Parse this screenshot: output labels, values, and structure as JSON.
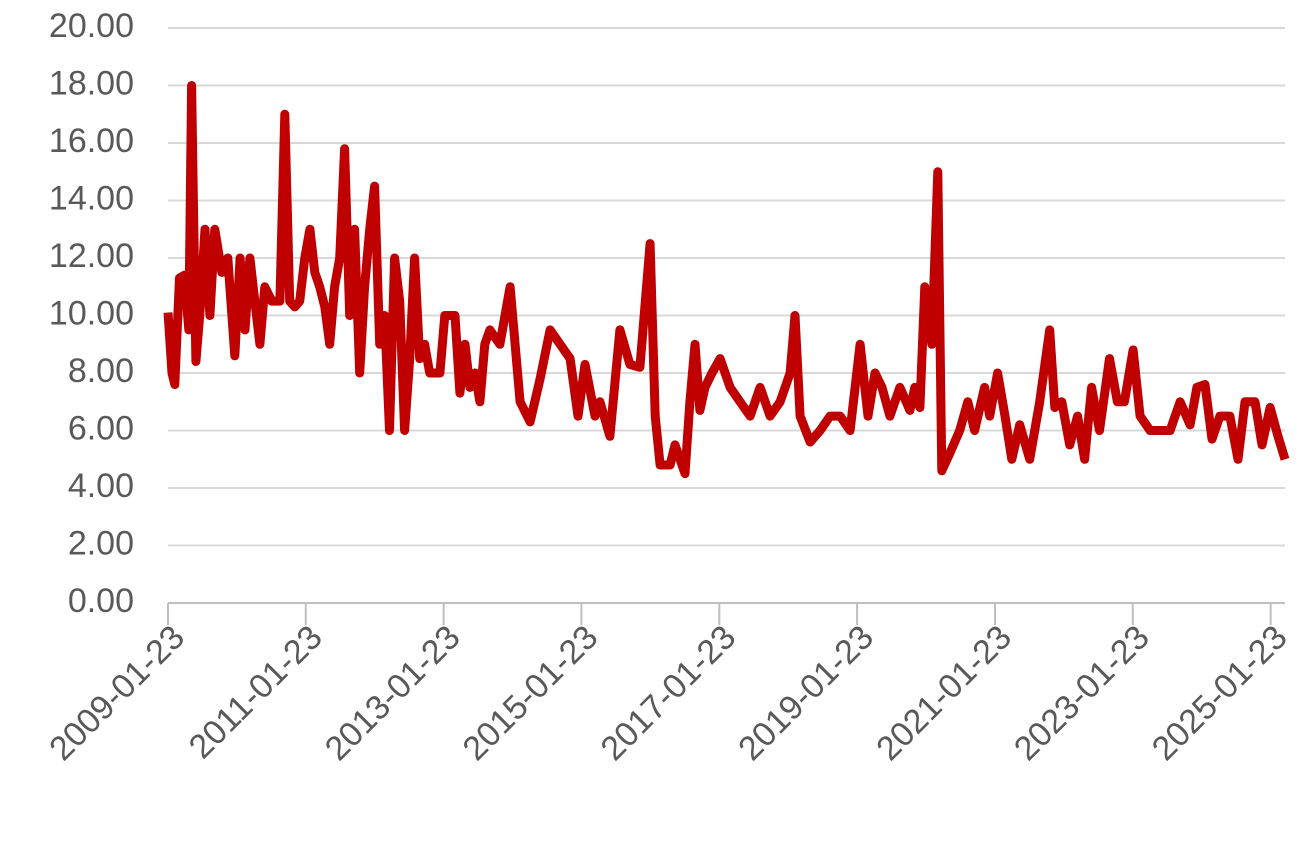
{
  "chart_data": {
    "type": "line",
    "x": [
      "2009-01-23",
      "2009-02-13",
      "2009-02-28",
      "2009-03-25",
      "2009-04-20",
      "2009-05-13",
      "2009-05-28",
      "2009-06-20",
      "2009-07-10",
      "2009-08-07",
      "2009-09-02",
      "2009-09-28",
      "2009-11-04",
      "2009-12-06",
      "2010-01-12",
      "2010-02-09",
      "2010-03-07",
      "2010-04-02",
      "2010-04-28",
      "2010-05-25",
      "2010-06-20",
      "2010-07-27",
      "2010-09-08",
      "2010-10-04",
      "2010-10-30",
      "2010-11-26",
      "2010-12-22",
      "2011-01-18",
      "2011-02-14",
      "2011-03-12",
      "2011-04-07",
      "2011-05-04",
      "2011-05-30",
      "2011-06-25",
      "2011-07-22",
      "2011-08-17",
      "2011-09-13",
      "2011-10-09",
      "2011-11-05",
      "2011-12-01",
      "2011-12-28",
      "2012-01-23",
      "2012-02-19",
      "2012-03-16",
      "2012-04-11",
      "2012-05-08",
      "2012-06-04",
      "2012-06-30",
      "2012-07-27",
      "2012-08-22",
      "2012-09-18",
      "2012-10-14",
      "2012-11-10",
      "2013-01-03",
      "2013-01-29",
      "2013-03-24",
      "2013-04-19",
      "2013-05-16",
      "2013-06-11",
      "2013-07-08",
      "2013-08-03",
      "2013-08-29",
      "2013-09-25",
      "2013-11-17",
      "2014-01-10",
      "2014-03-04",
      "2014-04-26",
      "2014-06-18",
      "2014-08-10",
      "2014-10-02",
      "2014-11-24",
      "2015-01-05",
      "2015-02-11",
      "2015-04-05",
      "2015-05-01",
      "2015-06-23",
      "2015-08-15",
      "2015-10-07",
      "2015-11-29",
      "2016-01-22",
      "2016-02-18",
      "2016-03-15",
      "2016-05-07",
      "2016-06-02",
      "2016-07-25",
      "2016-08-20",
      "2016-09-16",
      "2016-10-12",
      "2016-11-08",
      "2016-12-15",
      "2017-01-27",
      "2017-03-21",
      "2017-05-13",
      "2017-07-05",
      "2017-08-27",
      "2017-10-19",
      "2017-12-11",
      "2018-02-02",
      "2018-02-28",
      "2018-03-27",
      "2018-05-19",
      "2018-07-11",
      "2018-09-02",
      "2018-10-25",
      "2018-12-17",
      "2019-02-08",
      "2019-03-22",
      "2019-04-28",
      "2019-06-04",
      "2019-07-16",
      "2019-09-07",
      "2019-10-30",
      "2019-11-25",
      "2019-12-22",
      "2020-01-17",
      "2020-02-23",
      "2020-03-26",
      "2020-04-16",
      "2020-05-28",
      "2020-07-20",
      "2020-09-01",
      "2020-10-07",
      "2020-11-29",
      "2020-12-26",
      "2021-02-06",
      "2021-03-17",
      "2021-04-22",
      "2021-06-03",
      "2021-07-26",
      "2021-09-17",
      "2021-11-09",
      "2021-12-06",
      "2022-01-12",
      "2022-02-23",
      "2022-04-06",
      "2022-05-13",
      "2022-06-19",
      "2022-07-31",
      "2022-09-22",
      "2022-11-03",
      "2022-12-10",
      "2023-01-25",
      "2023-03-03",
      "2023-04-25",
      "2023-06-17",
      "2023-08-09",
      "2023-10-01",
      "2023-11-23",
      "2023-12-29",
      "2024-02-10",
      "2024-03-18",
      "2024-04-29",
      "2024-06-21",
      "2024-08-03",
      "2024-09-09",
      "2024-11-01",
      "2024-12-08",
      "2025-01-20",
      "2025-03-03",
      "2025-04-09"
    ],
    "series": [
      {
        "color": "#c00000",
        "values": [
          10.1,
          8.0,
          7.6,
          11.3,
          11.4,
          9.5,
          18.0,
          8.4,
          10.0,
          13.0,
          10.0,
          13.0,
          11.5,
          12.0,
          8.6,
          12.0,
          9.5,
          12.0,
          10.5,
          9.0,
          11.0,
          10.5,
          10.5,
          17.0,
          10.5,
          10.3,
          10.5,
          12.0,
          13.0,
          11.5,
          11.0,
          10.3,
          9.0,
          11.0,
          12.0,
          15.8,
          10.0,
          13.0,
          8.0,
          11.0,
          13.0,
          14.5,
          9.0,
          10.0,
          6.0,
          12.0,
          10.5,
          6.0,
          8.5,
          12.0,
          8.5,
          9.0,
          8.0,
          8.0,
          10.0,
          10.0,
          7.3,
          9.0,
          7.5,
          8.0,
          7.0,
          9.0,
          9.5,
          9.0,
          11.0,
          7.0,
          6.3,
          7.8,
          9.5,
          9.0,
          8.5,
          6.5,
          8.3,
          6.5,
          7.0,
          5.8,
          9.5,
          8.3,
          8.2,
          12.5,
          6.5,
          4.8,
          4.8,
          5.5,
          4.5,
          7.0,
          9.0,
          6.7,
          7.5,
          8.0,
          8.5,
          7.5,
          7.0,
          6.5,
          7.5,
          6.5,
          7.0,
          8.0,
          10.0,
          6.5,
          5.6,
          6.0,
          6.5,
          6.5,
          6.0,
          9.0,
          6.5,
          8.0,
          7.5,
          6.5,
          7.5,
          6.7,
          7.5,
          6.8,
          11.0,
          9.0,
          15.0,
          4.6,
          5.2,
          6.0,
          7.0,
          6.0,
          7.5,
          6.5,
          8.0,
          6.5,
          5.0,
          6.2,
          5.0,
          7.0,
          9.5,
          6.8,
          7.0,
          5.5,
          6.5,
          5.0,
          7.5,
          6.0,
          8.5,
          7.0,
          7.0,
          8.8,
          6.5,
          6.0,
          6.0,
          6.0,
          7.0,
          6.2,
          7.5,
          7.6,
          5.7,
          6.5,
          6.5,
          5.0,
          7.0,
          7.0,
          5.5,
          6.8,
          5.8,
          5.0
        ]
      }
    ],
    "xlim": [
      "2009-01-23",
      "2025-04-09"
    ],
    "xticks": [
      "2009-01-23",
      "2011-01-23",
      "2013-01-23",
      "2015-01-23",
      "2017-01-23",
      "2019-01-23",
      "2021-01-23",
      "2023-01-23",
      "2025-01-23"
    ],
    "ylim": [
      0,
      20
    ],
    "yticks": [
      {
        "value": 0,
        "label": "0.00"
      },
      {
        "value": 2,
        "label": "2.00"
      },
      {
        "value": 4,
        "label": "4.00"
      },
      {
        "value": 6,
        "label": "6.00"
      },
      {
        "value": 8,
        "label": "8.00"
      },
      {
        "value": 10,
        "label": "10.00"
      },
      {
        "value": 12,
        "label": "12.00"
      },
      {
        "value": 14,
        "label": "14.00"
      },
      {
        "value": 16,
        "label": "16.00"
      },
      {
        "value": 18,
        "label": "18.00"
      },
      {
        "value": 20,
        "label": "20.00"
      }
    ],
    "grid": true
  }
}
